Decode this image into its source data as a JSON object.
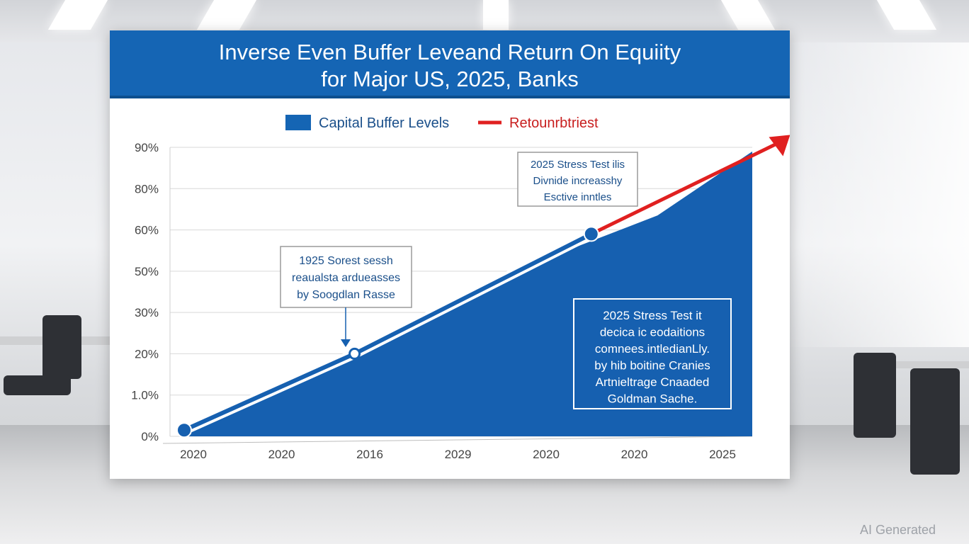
{
  "chart_data": {
    "type": "area",
    "title_line1": "Inverse Even Buffer Leveand Return On Equiity",
    "title_line2": "for Major US, 2025, Banks",
    "legend": [
      {
        "name": "Capital Buffer Levels",
        "color": "#1565b4",
        "shape": "box"
      },
      {
        "name": "Retounrbtriest",
        "color": "#e02020",
        "shape": "line"
      }
    ],
    "y_ticks": [
      "90%",
      "80%",
      "60%",
      "50%",
      "30%",
      "20%",
      "1.0%",
      "0%"
    ],
    "x_ticks": [
      "2020",
      "2020",
      "2016",
      "2029",
      "2020",
      "2020",
      "2025"
    ],
    "ylim": [
      0,
      7
    ],
    "area_series": {
      "name": "Capital Buffer Levels",
      "x": [
        0,
        0.7,
        1.7,
        2.7,
        3.7,
        5.0,
        6.0
      ],
      "y": [
        0.05,
        0.8,
        1.95,
        3.1,
        4.2,
        5.35,
        6.9
      ]
    },
    "line_series": {
      "blue_x": [
        0,
        1.8,
        4.3
      ],
      "blue_y": [
        0.15,
        2.0,
        4.9
      ],
      "red_x": [
        4.3,
        6.4
      ],
      "red_y": [
        4.9,
        7.3
      ]
    },
    "markers": [
      {
        "x": 0,
        "y": 0.15,
        "style": "filled"
      },
      {
        "x": 1.8,
        "y": 2.0,
        "style": "hollow"
      },
      {
        "x": 4.3,
        "y": 4.9,
        "style": "filled"
      }
    ],
    "grid": true,
    "legend_position": "top-center",
    "annotations": {
      "a1": [
        "1925 Sorest sessh",
        "reaualsta ardueasses",
        "by Soogdlan Rasse"
      ],
      "a2": [
        "2025 Stress Test ilis",
        "Divnide increasshy",
        "Esctive inntles"
      ],
      "a3": [
        "2025 Stress Test it",
        "decica ic eodaitions",
        "comnees.intledianLly.",
        "by hib boitine Cranies",
        "Artnieltrage Cnaaded",
        "Goldman Sache."
      ]
    }
  },
  "watermark": "AI Generated"
}
